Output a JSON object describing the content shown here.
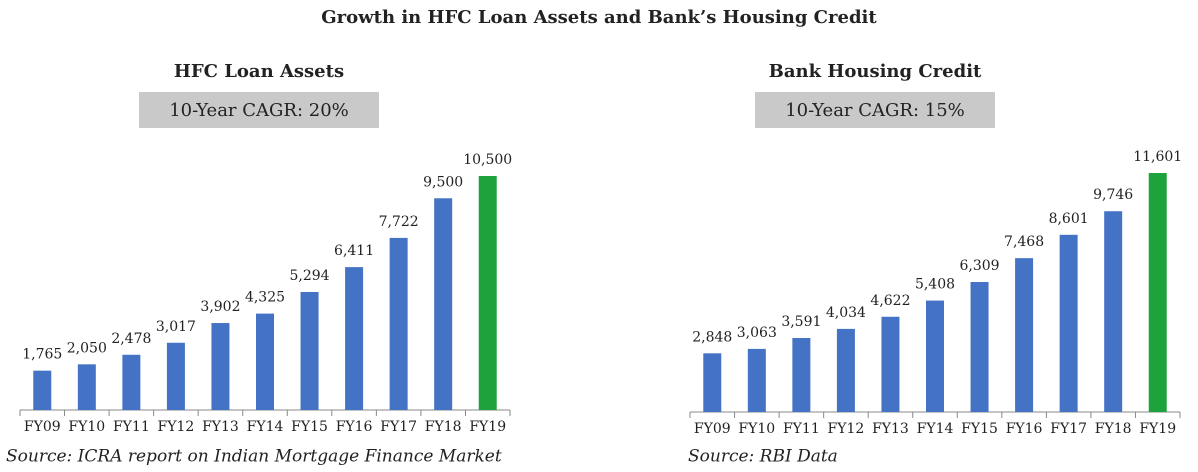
{
  "title": "Growth in HFC Loan Assets and Bank’s Housing Credit",
  "chart_data": [
    {
      "type": "bar",
      "title": "HFC Loan Assets",
      "subtitle": "10-Year CAGR: 20%",
      "categories": [
        "FY09",
        "FY10",
        "FY11",
        "FY12",
        "FY13",
        "FY14",
        "FY15",
        "FY16",
        "FY17",
        "FY18",
        "FY19"
      ],
      "values": [
        1765,
        2050,
        2478,
        3017,
        3902,
        4325,
        5294,
        6411,
        7722,
        9500,
        10500
      ],
      "value_labels": [
        "1,765",
        "2,050",
        "2,478",
        "3,017",
        "3,902",
        "4,325",
        "5,294",
        "6,411",
        "7,722",
        "9,500",
        "10,500"
      ],
      "colors": [
        "#4473c5",
        "#4473c5",
        "#4473c5",
        "#4473c5",
        "#4473c5",
        "#4473c5",
        "#4473c5",
        "#4473c5",
        "#4473c5",
        "#4473c5",
        "#1ea33c"
      ],
      "source": "Source: ICRA report on Indian Mortgage Finance Market"
    },
    {
      "type": "bar",
      "title": "Bank Housing Credit",
      "subtitle": "10-Year CAGR: 15%",
      "categories": [
        "FY09",
        "FY10",
        "FY11",
        "FY12",
        "FY13",
        "FY14",
        "FY15",
        "FY16",
        "FY17",
        "FY18",
        "FY19"
      ],
      "values": [
        2848,
        3063,
        3591,
        4034,
        4622,
        5408,
        6309,
        7468,
        8601,
        9746,
        11601
      ],
      "value_labels": [
        "2,848",
        "3,063",
        "3,591",
        "4,034",
        "4,622",
        "5,408",
        "6,309",
        "7,468",
        "8,601",
        "9,746",
        "11,601"
      ],
      "colors": [
        "#4473c5",
        "#4473c5",
        "#4473c5",
        "#4473c5",
        "#4473c5",
        "#4473c5",
        "#4473c5",
        "#4473c5",
        "#4473c5",
        "#4473c5",
        "#1ea33c"
      ],
      "source": "Source: RBI Data"
    }
  ]
}
